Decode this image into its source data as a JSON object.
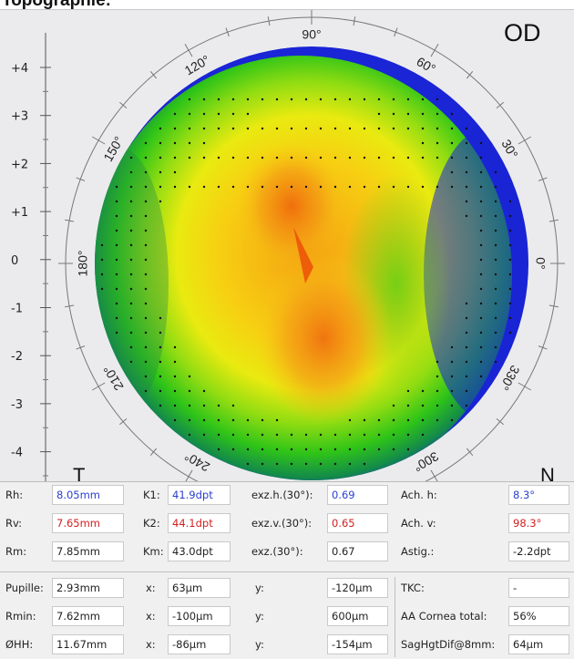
{
  "title": "Topographie:",
  "eye_label": "OD",
  "nasal_label": "N",
  "temporal_label": "T",
  "y_axis_ticks": [
    "+4",
    "+3",
    "+2",
    "+1",
    "0",
    "-1",
    "-2",
    "-3",
    "-4"
  ],
  "angle_labels": [
    "90°",
    "60°",
    "30°",
    "0°",
    "330°",
    "300°",
    "240°",
    "210°",
    "180°",
    "150°",
    "120°"
  ],
  "colors": {
    "panel_bg": "#ebebed",
    "map_flat_blue": "#1a25d6",
    "map_green": "#2fc418",
    "map_yellow": "#f2e000",
    "map_orange": "#f49a12",
    "map_steep": "#ee3a08",
    "value_blue": "#2a3fd0",
    "value_red": "#d42020"
  },
  "measurements": {
    "row1": {
      "rh_label": "Rh:",
      "rh_value": "8.05mm",
      "k1_label": "K1:",
      "k1_value": "41.9dpt",
      "exzh_label": "exz.h.(30°):",
      "exzh_value": "0.69",
      "ach_label": "Ach. h:",
      "ach_value": "8.3°"
    },
    "row2": {
      "rv_label": "Rv:",
      "rv_value": "7.65mm",
      "k2_label": "K2:",
      "k2_value": "44.1dpt",
      "exzv_label": "exz.v.(30°):",
      "exzv_value": "0.65",
      "acv_label": "Ach. v:",
      "acv_value": "98.3°"
    },
    "row3": {
      "rm_label": "Rm:",
      "rm_value": "7.85mm",
      "km_label": "Km:",
      "km_value": "43.0dpt",
      "exz_label": "exz.(30°):",
      "exz_value": "0.67",
      "astig_label": "Astig.:",
      "astig_value": "-2.2dpt"
    },
    "row4": {
      "pup_label": "Pupille:",
      "pup_value": "2.93mm",
      "x_label": "x:",
      "x_value": "63µm",
      "y_label": "y:",
      "y_value": "-120µm",
      "tkc_label": "TKC:",
      "tkc_value": "-"
    },
    "row5": {
      "rmin_label": "Rmin:",
      "rmin_value": "7.62mm",
      "x_label": "x:",
      "x_value": "-100µm",
      "y_label": "y:",
      "y_value": "600µm",
      "aa_label": "AA Cornea total:",
      "aa_value": "56%"
    },
    "row6": {
      "hh_label": "ØHH:",
      "hh_value": "11.67mm",
      "x_label": "x:",
      "x_value": "-86µm",
      "y_label": "y:",
      "y_value": "-154µm",
      "sag_label": "SagHgtDif@8mm:",
      "sag_value": "64µm"
    }
  }
}
